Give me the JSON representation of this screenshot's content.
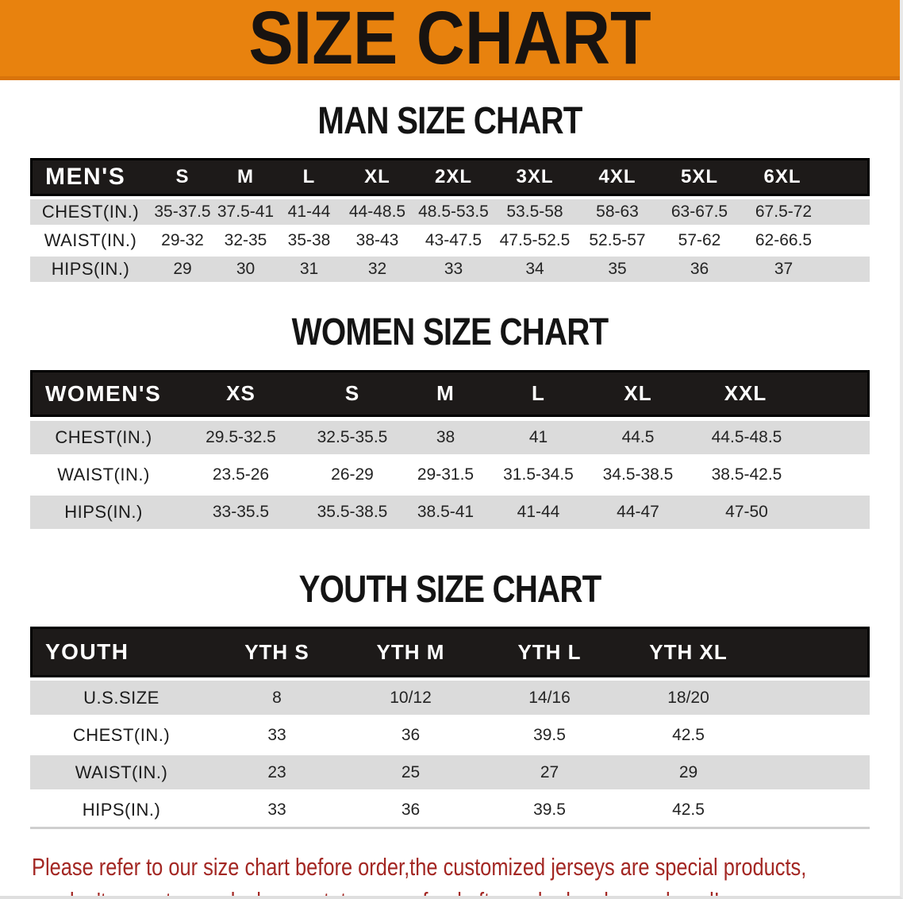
{
  "banner": {
    "title": "SIZE CHART",
    "bg_color": "#E8820E",
    "text_color": "#181310"
  },
  "sections": [
    {
      "heading": "MAN SIZE CHART",
      "table": {
        "header_label": "MEN'S",
        "columns": [
          "S",
          "M",
          "L",
          "XL",
          "2XL",
          "3XL",
          "4XL",
          "5XL",
          "6XL"
        ],
        "rows": [
          {
            "label": "CHEST(IN.)",
            "values": [
              "35-37.5",
              "37.5-41",
              "41-44",
              "44-48.5",
              "48.5-53.5",
              "53.5-58",
              "58-63",
              "63-67.5",
              "67.5-72"
            ]
          },
          {
            "label": "WAIST(IN.)",
            "values": [
              "29-32",
              "32-35",
              "35-38",
              "38-43",
              "43-47.5",
              "47.5-52.5",
              "52.5-57",
              "57-62",
              "62-66.5"
            ]
          },
          {
            "label": "HIPS(IN.)",
            "values": [
              "29",
              "30",
              "31",
              "32",
              "33",
              "34",
              "35",
              "36",
              "37"
            ]
          }
        ]
      }
    },
    {
      "heading": "WOMEN SIZE CHART",
      "table": {
        "header_label": "WOMEN'S",
        "columns": [
          "XS",
          "S",
          "M",
          "L",
          "XL",
          "XXL"
        ],
        "rows": [
          {
            "label": "CHEST(IN.)",
            "values": [
              "29.5-32.5",
              "32.5-35.5",
              "38",
              "41",
              "44.5",
              "44.5-48.5"
            ]
          },
          {
            "label": "WAIST(IN.)",
            "values": [
              "23.5-26",
              "26-29",
              "29-31.5",
              "31.5-34.5",
              "34.5-38.5",
              "38.5-42.5"
            ]
          },
          {
            "label": "HIPS(IN.)",
            "values": [
              "33-35.5",
              "35.5-38.5",
              "38.5-41",
              "41-44",
              "44-47",
              "47-50"
            ]
          }
        ]
      }
    },
    {
      "heading": "YOUTH SIZE CHART",
      "table": {
        "header_label": "YOUTH",
        "columns": [
          "YTH S",
          "YTH M",
          "YTH L",
          "YTH XL"
        ],
        "rows": [
          {
            "label": "U.S.SIZE",
            "values": [
              "8",
              "10/12",
              "14/16",
              "18/20"
            ]
          },
          {
            "label": "CHEST(IN.)",
            "values": [
              "33",
              "36",
              "39.5",
              "42.5"
            ]
          },
          {
            "label": "WAIST(IN.)",
            "values": [
              "23",
              "25",
              "27",
              "29"
            ]
          },
          {
            "label": "HIPS(IN.)",
            "values": [
              "33",
              "36",
              "39.5",
              "42.5"
            ]
          }
        ]
      }
    }
  ],
  "disclaimer": {
    "line1": "Please refer to our size chart before order,the customized jerseys are special products,",
    "line2": "we don't accept cancel, change, teturn or refund after order has been placed!",
    "color": "#A32723",
    "header_row_color": "#1d1a19",
    "stripe_color": "#DBDBDB"
  }
}
